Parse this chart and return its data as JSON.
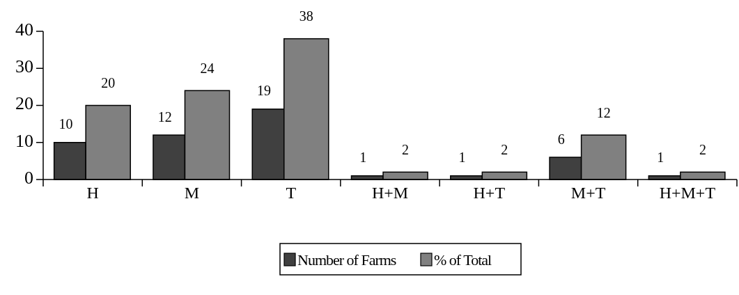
{
  "chart_data": {
    "type": "bar",
    "categories": [
      "H",
      "M",
      "T",
      "H+M",
      "H+T",
      "M+T",
      "H+M+T"
    ],
    "series": [
      {
        "name": "Number of Farms",
        "color": "#404040",
        "values": [
          10,
          12,
          19,
          1,
          1,
          6,
          1
        ]
      },
      {
        "name": "% of Total",
        "color": "#808080",
        "values": [
          20,
          24,
          38,
          2,
          2,
          12,
          2
        ]
      }
    ],
    "ylim": [
      0,
      40
    ],
    "yticks": [
      0,
      10,
      20,
      30,
      40
    ],
    "grid": false,
    "legend": "bottom",
    "data_labels": true
  }
}
